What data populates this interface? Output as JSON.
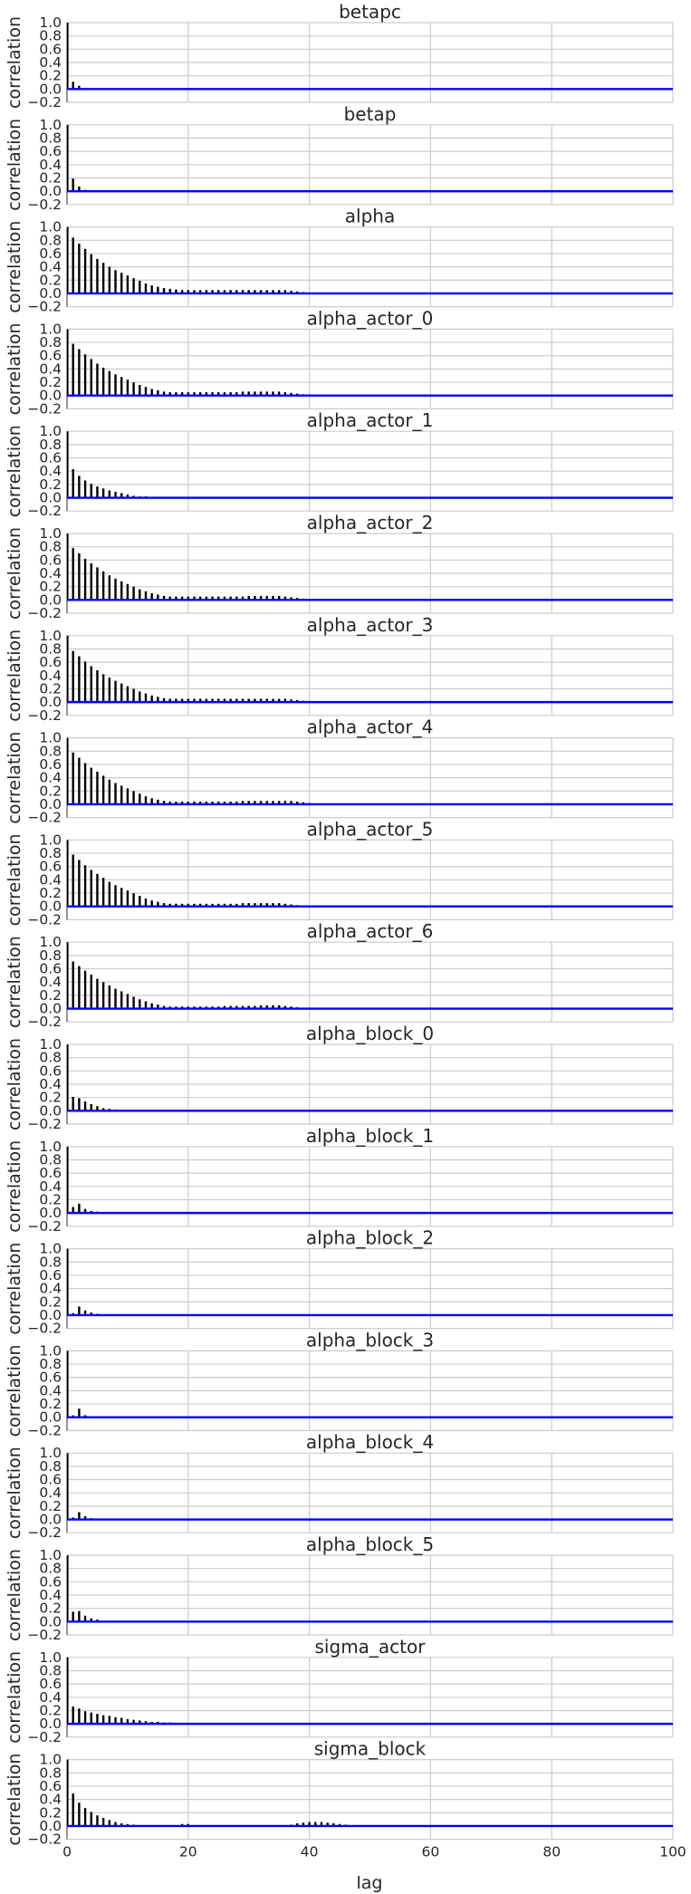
{
  "chart_data": {
    "type": "bar",
    "description_of_layout": "18 stacked autocorrelation subplots sharing x axis",
    "xlabel": "lag",
    "ylabel": "correlation",
    "xlim": [
      0,
      100
    ],
    "ylim": [
      -0.2,
      1.0
    ],
    "x_ticks": [
      0,
      20,
      40,
      60,
      80,
      100
    ],
    "y_ticks": [
      -0.2,
      0.0,
      0.2,
      0.4,
      0.6,
      0.8,
      1.0
    ],
    "y_tick_labels": [
      "−0.2",
      "0.0",
      "0.2",
      "0.4",
      "0.6",
      "0.8",
      "1.0"
    ],
    "zero_line_color": "#0000ff",
    "bar_color": "#000000",
    "grid": true,
    "panels": [
      {
        "name": "betapc",
        "values": [
          1.0,
          0.11,
          0.05,
          0.01,
          0.0,
          0.01,
          0.0,
          0.01,
          0.0,
          0.0
        ]
      },
      {
        "name": "betap",
        "values": [
          1.0,
          0.19,
          0.07,
          0.02,
          0.01,
          0.0,
          0.0,
          0.01,
          0.0,
          0.0
        ]
      },
      {
        "name": "alpha",
        "values": [
          1.0,
          0.84,
          0.75,
          0.67,
          0.59,
          0.52,
          0.46,
          0.4,
          0.35,
          0.31,
          0.27,
          0.23,
          0.19,
          0.15,
          0.12,
          0.1,
          0.08,
          0.07,
          0.06,
          0.05,
          0.05,
          0.05,
          0.05,
          0.05,
          0.05,
          0.05,
          0.05,
          0.05,
          0.05,
          0.05,
          0.05,
          0.05,
          0.05,
          0.05,
          0.05,
          0.05,
          0.05,
          0.04,
          0.03,
          0.02,
          0.01
        ]
      },
      {
        "name": "alpha_actor_0",
        "values": [
          1.0,
          0.78,
          0.7,
          0.62,
          0.55,
          0.48,
          0.42,
          0.37,
          0.32,
          0.28,
          0.24,
          0.2,
          0.16,
          0.13,
          0.1,
          0.08,
          0.06,
          0.05,
          0.05,
          0.05,
          0.05,
          0.05,
          0.05,
          0.05,
          0.05,
          0.05,
          0.05,
          0.05,
          0.05,
          0.06,
          0.06,
          0.06,
          0.06,
          0.06,
          0.06,
          0.06,
          0.05,
          0.04,
          0.03,
          0.02,
          0.01
        ]
      },
      {
        "name": "alpha_actor_1",
        "values": [
          1.0,
          0.43,
          0.33,
          0.26,
          0.21,
          0.17,
          0.14,
          0.11,
          0.09,
          0.07,
          0.05,
          0.03,
          0.02,
          0.02,
          0.01
        ]
      },
      {
        "name": "alpha_actor_2",
        "values": [
          1.0,
          0.78,
          0.7,
          0.62,
          0.55,
          0.49,
          0.43,
          0.37,
          0.32,
          0.28,
          0.24,
          0.2,
          0.16,
          0.13,
          0.1,
          0.08,
          0.06,
          0.05,
          0.05,
          0.05,
          0.05,
          0.05,
          0.05,
          0.05,
          0.05,
          0.05,
          0.05,
          0.05,
          0.05,
          0.05,
          0.06,
          0.06,
          0.06,
          0.06,
          0.06,
          0.06,
          0.05,
          0.04,
          0.03,
          0.02,
          0.01
        ]
      },
      {
        "name": "alpha_actor_3",
        "values": [
          1.0,
          0.77,
          0.69,
          0.61,
          0.54,
          0.48,
          0.42,
          0.37,
          0.32,
          0.28,
          0.24,
          0.2,
          0.16,
          0.13,
          0.1,
          0.08,
          0.06,
          0.05,
          0.05,
          0.05,
          0.05,
          0.05,
          0.05,
          0.05,
          0.05,
          0.05,
          0.05,
          0.05,
          0.05,
          0.05,
          0.05,
          0.05,
          0.05,
          0.05,
          0.05,
          0.05,
          0.05,
          0.04,
          0.03,
          0.02,
          0.01
        ]
      },
      {
        "name": "alpha_actor_4",
        "values": [
          1.0,
          0.78,
          0.7,
          0.62,
          0.55,
          0.49,
          0.43,
          0.37,
          0.32,
          0.28,
          0.24,
          0.2,
          0.16,
          0.12,
          0.09,
          0.07,
          0.05,
          0.04,
          0.04,
          0.04,
          0.04,
          0.04,
          0.04,
          0.04,
          0.04,
          0.04,
          0.04,
          0.04,
          0.04,
          0.05,
          0.05,
          0.05,
          0.05,
          0.05,
          0.05,
          0.05,
          0.05,
          0.05,
          0.04,
          0.03,
          0.02
        ]
      },
      {
        "name": "alpha_actor_5",
        "values": [
          1.0,
          0.78,
          0.7,
          0.62,
          0.55,
          0.49,
          0.43,
          0.37,
          0.32,
          0.28,
          0.24,
          0.2,
          0.16,
          0.12,
          0.09,
          0.07,
          0.05,
          0.04,
          0.04,
          0.04,
          0.04,
          0.04,
          0.04,
          0.04,
          0.04,
          0.04,
          0.04,
          0.04,
          0.04,
          0.05,
          0.05,
          0.05,
          0.05,
          0.05,
          0.05,
          0.05,
          0.04,
          0.03,
          0.02,
          0.01
        ]
      },
      {
        "name": "alpha_actor_6",
        "values": [
          1.0,
          0.71,
          0.64,
          0.57,
          0.51,
          0.45,
          0.4,
          0.35,
          0.3,
          0.26,
          0.22,
          0.18,
          0.14,
          0.11,
          0.08,
          0.06,
          0.04,
          0.03,
          0.03,
          0.03,
          0.03,
          0.03,
          0.03,
          0.03,
          0.03,
          0.03,
          0.04,
          0.04,
          0.04,
          0.04,
          0.04,
          0.04,
          0.05,
          0.05,
          0.05,
          0.05,
          0.04,
          0.03,
          0.02,
          0.01
        ]
      },
      {
        "name": "alpha_block_0",
        "values": [
          1.0,
          0.21,
          0.19,
          0.14,
          0.1,
          0.07,
          0.04,
          0.03,
          0.02,
          0.01
        ]
      },
      {
        "name": "alpha_block_1",
        "values": [
          1.0,
          0.09,
          0.14,
          0.06,
          0.03,
          0.02,
          0.01,
          0.01,
          0.0
        ]
      },
      {
        "name": "alpha_block_2",
        "values": [
          1.0,
          0.03,
          0.13,
          0.07,
          0.04,
          0.02,
          0.01,
          0.0
        ]
      },
      {
        "name": "alpha_block_3",
        "values": [
          1.0,
          0.03,
          0.13,
          0.03,
          0.01,
          0.0
        ]
      },
      {
        "name": "alpha_block_4",
        "values": [
          1.0,
          0.03,
          0.11,
          0.05,
          0.02,
          0.01,
          0.0
        ]
      },
      {
        "name": "alpha_block_5",
        "values": [
          1.0,
          0.15,
          0.16,
          0.09,
          0.05,
          0.03,
          0.01,
          0.0
        ]
      },
      {
        "name": "sigma_actor",
        "values": [
          1.0,
          0.26,
          0.23,
          0.19,
          0.17,
          0.15,
          0.13,
          0.12,
          0.1,
          0.09,
          0.07,
          0.06,
          0.05,
          0.04,
          0.03,
          0.03,
          0.02,
          0.02,
          0.01
        ]
      },
      {
        "name": "sigma_block",
        "values": [
          1.0,
          0.49,
          0.35,
          0.27,
          0.21,
          0.16,
          0.12,
          0.09,
          0.06,
          0.04,
          0.03,
          0.02,
          0.01,
          0.0,
          0.0,
          0.0,
          0.0,
          0.0,
          0.0,
          0.03,
          0.03,
          0.0,
          0.0,
          0.0,
          0.0,
          0.0,
          0.0,
          0.0,
          0.0,
          0.0,
          0.0,
          0.0,
          0.0,
          0.0,
          0.0,
          0.0,
          0.0,
          0.02,
          0.04,
          0.05,
          0.06,
          0.06,
          0.06,
          0.05,
          0.04,
          0.03,
          0.02
        ]
      }
    ]
  }
}
